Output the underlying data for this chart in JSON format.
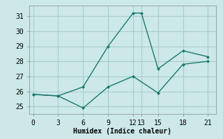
{
  "xlabel": "Humidex (Indice chaleur)",
  "background_color": "#cce8e8",
  "line_color": "#1a7a6e",
  "grid_color": "#aacccc",
  "series1_x": [
    0,
    3,
    6,
    9,
    12,
    13,
    15,
    18,
    21
  ],
  "series1_y": [
    25.8,
    25.7,
    26.3,
    29.0,
    31.2,
    31.2,
    27.5,
    28.7,
    28.3
  ],
  "series2_x": [
    0,
    3,
    6,
    9,
    12,
    15,
    18,
    21
  ],
  "series2_y": [
    25.8,
    25.7,
    24.9,
    26.3,
    27.0,
    25.9,
    27.8,
    28.0
  ],
  "xlim": [
    -0.5,
    22
  ],
  "ylim": [
    24.5,
    31.7
  ],
  "xticks": [
    0,
    3,
    6,
    9,
    12,
    13,
    15,
    18,
    21
  ],
  "yticks": [
    25,
    26,
    27,
    28,
    29,
    30,
    31
  ],
  "label_fontsize": 7,
  "tick_fontsize": 7
}
